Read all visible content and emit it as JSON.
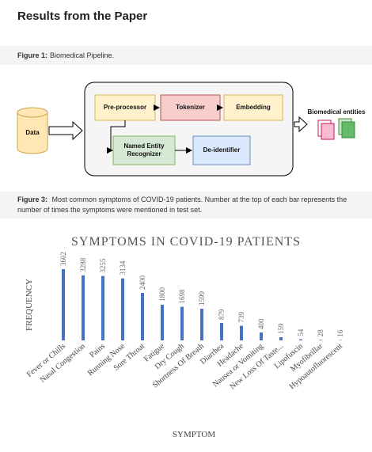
{
  "header": {
    "title": "Results from the Paper"
  },
  "figure1": {
    "label": "Figure 1:",
    "text": "Biomedical Pipeline."
  },
  "diagram": {
    "nodes": [
      "Data",
      "Pre-processor",
      "Tokenizer",
      "Embedding",
      "Named Entity Recognizer",
      "De-identifier",
      "Biomedical entities"
    ]
  },
  "figure3": {
    "label": "Figure 3:",
    "text": "Most common symptoms of COVID-19 patients. Number at the top of each bar represents the number of times the symptoms were mentioned in test set."
  },
  "chart_data": {
    "type": "bar",
    "title": "SYMPTOMS IN COVID-19 PATIENTS",
    "x_label": "SYMPTOM",
    "y_label": "FREQUENCY",
    "categories": [
      "Fever or Chills",
      "Nasal Congestion",
      "Pains",
      "Running Nose",
      "Sore Throat",
      "Fatigue",
      "Dry Cough",
      "Shortness Of Breath",
      "Diarrhea",
      "Headache",
      "Nausea or Vomiting",
      "New Loss Of Taste...",
      "Lipofuscin",
      "Myofibrillar",
      "Hypoautofluorescent"
    ],
    "values": [
      3602,
      3288,
      3255,
      3134,
      2400,
      1800,
      1698,
      1599,
      879,
      739,
      400,
      159,
      54,
      28,
      16
    ],
    "color": "#4472c4",
    "ylim": [
      0,
      4000
    ]
  }
}
